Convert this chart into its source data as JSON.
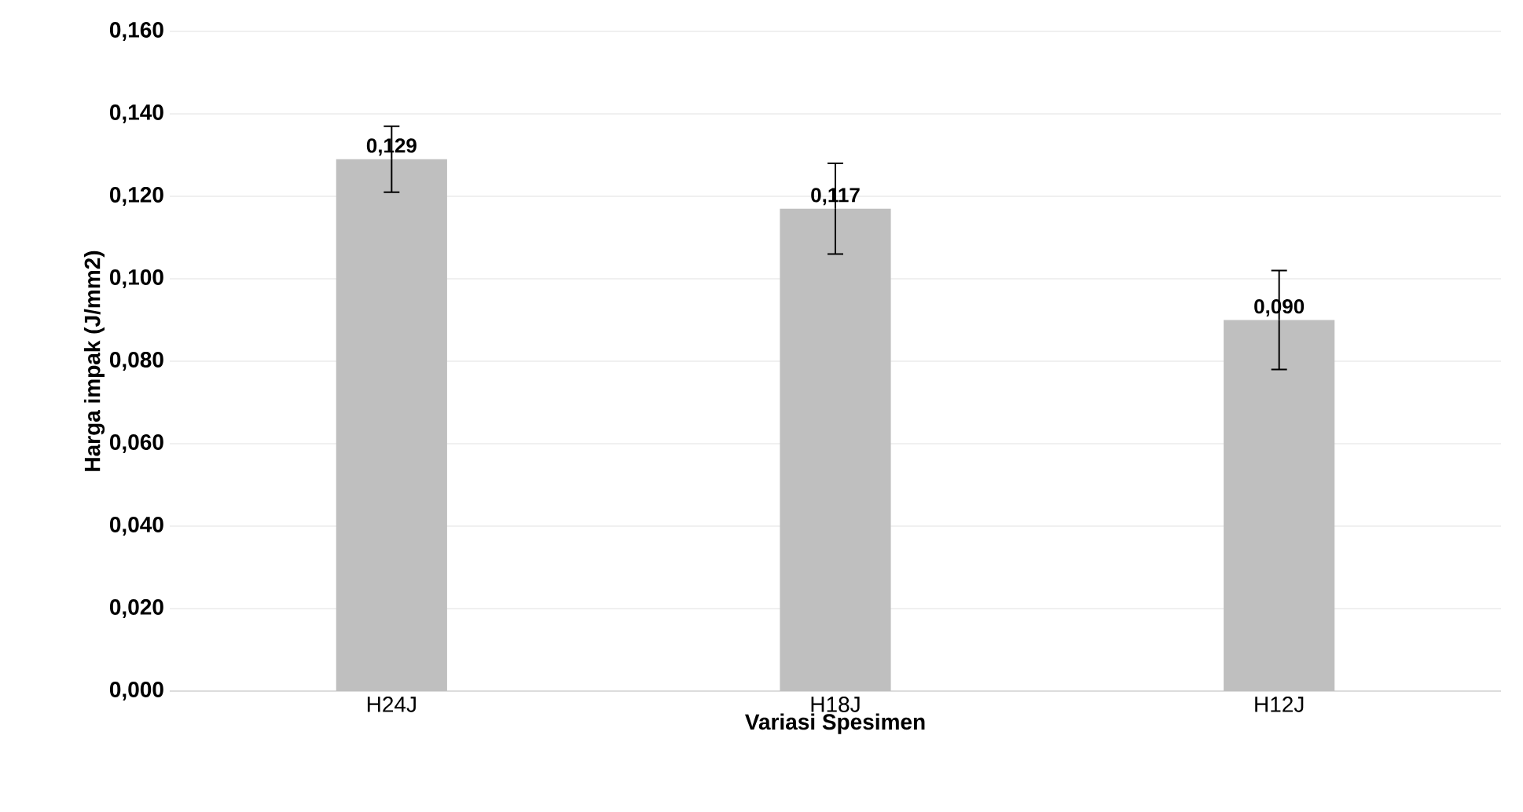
{
  "chart_data": {
    "type": "bar",
    "xlabel": "Variasi Spesimen",
    "ylabel": "Harga impak (J/mm2)",
    "categories": [
      "H24J",
      "H18J",
      "H12J"
    ],
    "values": [
      0.129,
      0.117,
      0.09
    ],
    "errors": [
      0.008,
      0.011,
      0.012
    ],
    "value_labels": [
      "0,129",
      "0,117",
      "0,090"
    ],
    "color": "#bfbfbf",
    "ylim": [
      0,
      0.16
    ],
    "yticks": [
      {
        "value": 0,
        "label": "0,000"
      },
      {
        "value": 0.02,
        "label": "0,020"
      },
      {
        "value": 0.04,
        "label": "0,040"
      },
      {
        "value": 0.06,
        "label": "0,060"
      },
      {
        "value": 0.08,
        "label": "0,080"
      },
      {
        "value": 0.1,
        "label": "0,100"
      },
      {
        "value": 0.12,
        "label": "0,120"
      },
      {
        "value": 0.14,
        "label": "0,140"
      },
      {
        "value": 0.16,
        "label": "0,160"
      }
    ],
    "grid": "y"
  }
}
